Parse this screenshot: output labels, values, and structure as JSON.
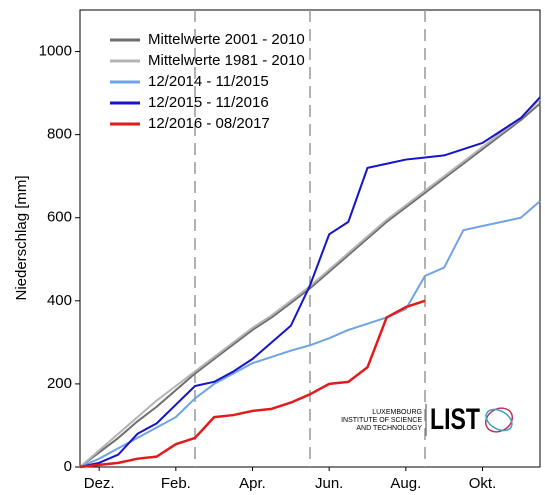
{
  "chart_data": {
    "type": "line",
    "y_label": "Niederschlag [mm]",
    "x": [
      0,
      0.5,
      1,
      1.5,
      2,
      2.5,
      3,
      3.5,
      4,
      4.5,
      5,
      5.5,
      6,
      6.5,
      7,
      7.5,
      8,
      8.5,
      9,
      9.5,
      10,
      10.5,
      11,
      11.5,
      12
    ],
    "xlim": [
      0,
      12
    ],
    "xticks": [
      {
        "value": 0.5,
        "label": "Dez."
      },
      {
        "value": 2.5,
        "label": "Feb."
      },
      {
        "value": 4.5,
        "label": "Apr."
      },
      {
        "value": 6.5,
        "label": "Jun."
      },
      {
        "value": 8.5,
        "label": "Aug."
      },
      {
        "value": 10.5,
        "label": "Okt."
      }
    ],
    "ylim": [
      0,
      1100
    ],
    "yticks": [
      0,
      200,
      400,
      600,
      800,
      1000
    ],
    "vlines": [
      3,
      6,
      9
    ],
    "legend": "upper left",
    "series": [
      {
        "name": "Mittelwerte 2001 - 2010",
        "color": "#6e6e6e",
        "values": [
          0,
          35,
          70,
          110,
          145,
          185,
          225,
          260,
          295,
          330,
          360,
          395,
          430,
          470,
          510,
          550,
          590,
          625,
          660,
          695,
          730,
          765,
          800,
          835,
          875
        ]
      },
      {
        "name": "Mittelwerte 1981 - 2010",
        "color": "#b4b4b4",
        "values": [
          0,
          40,
          80,
          120,
          160,
          195,
          230,
          265,
          300,
          335,
          365,
          400,
          435,
          475,
          515,
          555,
          595,
          630,
          665,
          700,
          735,
          770,
          805,
          840,
          885
        ]
      },
      {
        "name": "12/2014 - 11/2015",
        "color": "#6fa3e8",
        "values": [
          0,
          20,
          45,
          70,
          95,
          120,
          165,
          200,
          225,
          250,
          265,
          280,
          293,
          310,
          330,
          345,
          360,
          380,
          460,
          480,
          570,
          580,
          590,
          600,
          640
        ]
      },
      {
        "name": "12/2015 - 11/2016",
        "color": "#1414c8",
        "values": [
          0,
          10,
          30,
          80,
          105,
          150,
          195,
          205,
          230,
          260,
          300,
          340,
          437,
          560,
          590,
          720,
          730,
          740,
          745,
          750,
          765,
          780,
          810,
          840,
          890
        ]
      },
      {
        "name": "12/2016 - 08/2017",
        "color": "#e31a1a",
        "values": [
          0,
          5,
          10,
          20,
          25,
          55,
          70,
          120,
          125,
          135,
          140,
          155,
          175,
          200,
          205,
          240,
          360,
          385,
          400,
          null,
          null,
          null,
          null,
          null,
          null
        ]
      }
    ],
    "logo": {
      "line1": "LUXEMBOURG",
      "line2": "INSTITUTE OF SCIENCE",
      "line3": "AND TECHNOLOGY",
      "mark": "LIST"
    }
  }
}
